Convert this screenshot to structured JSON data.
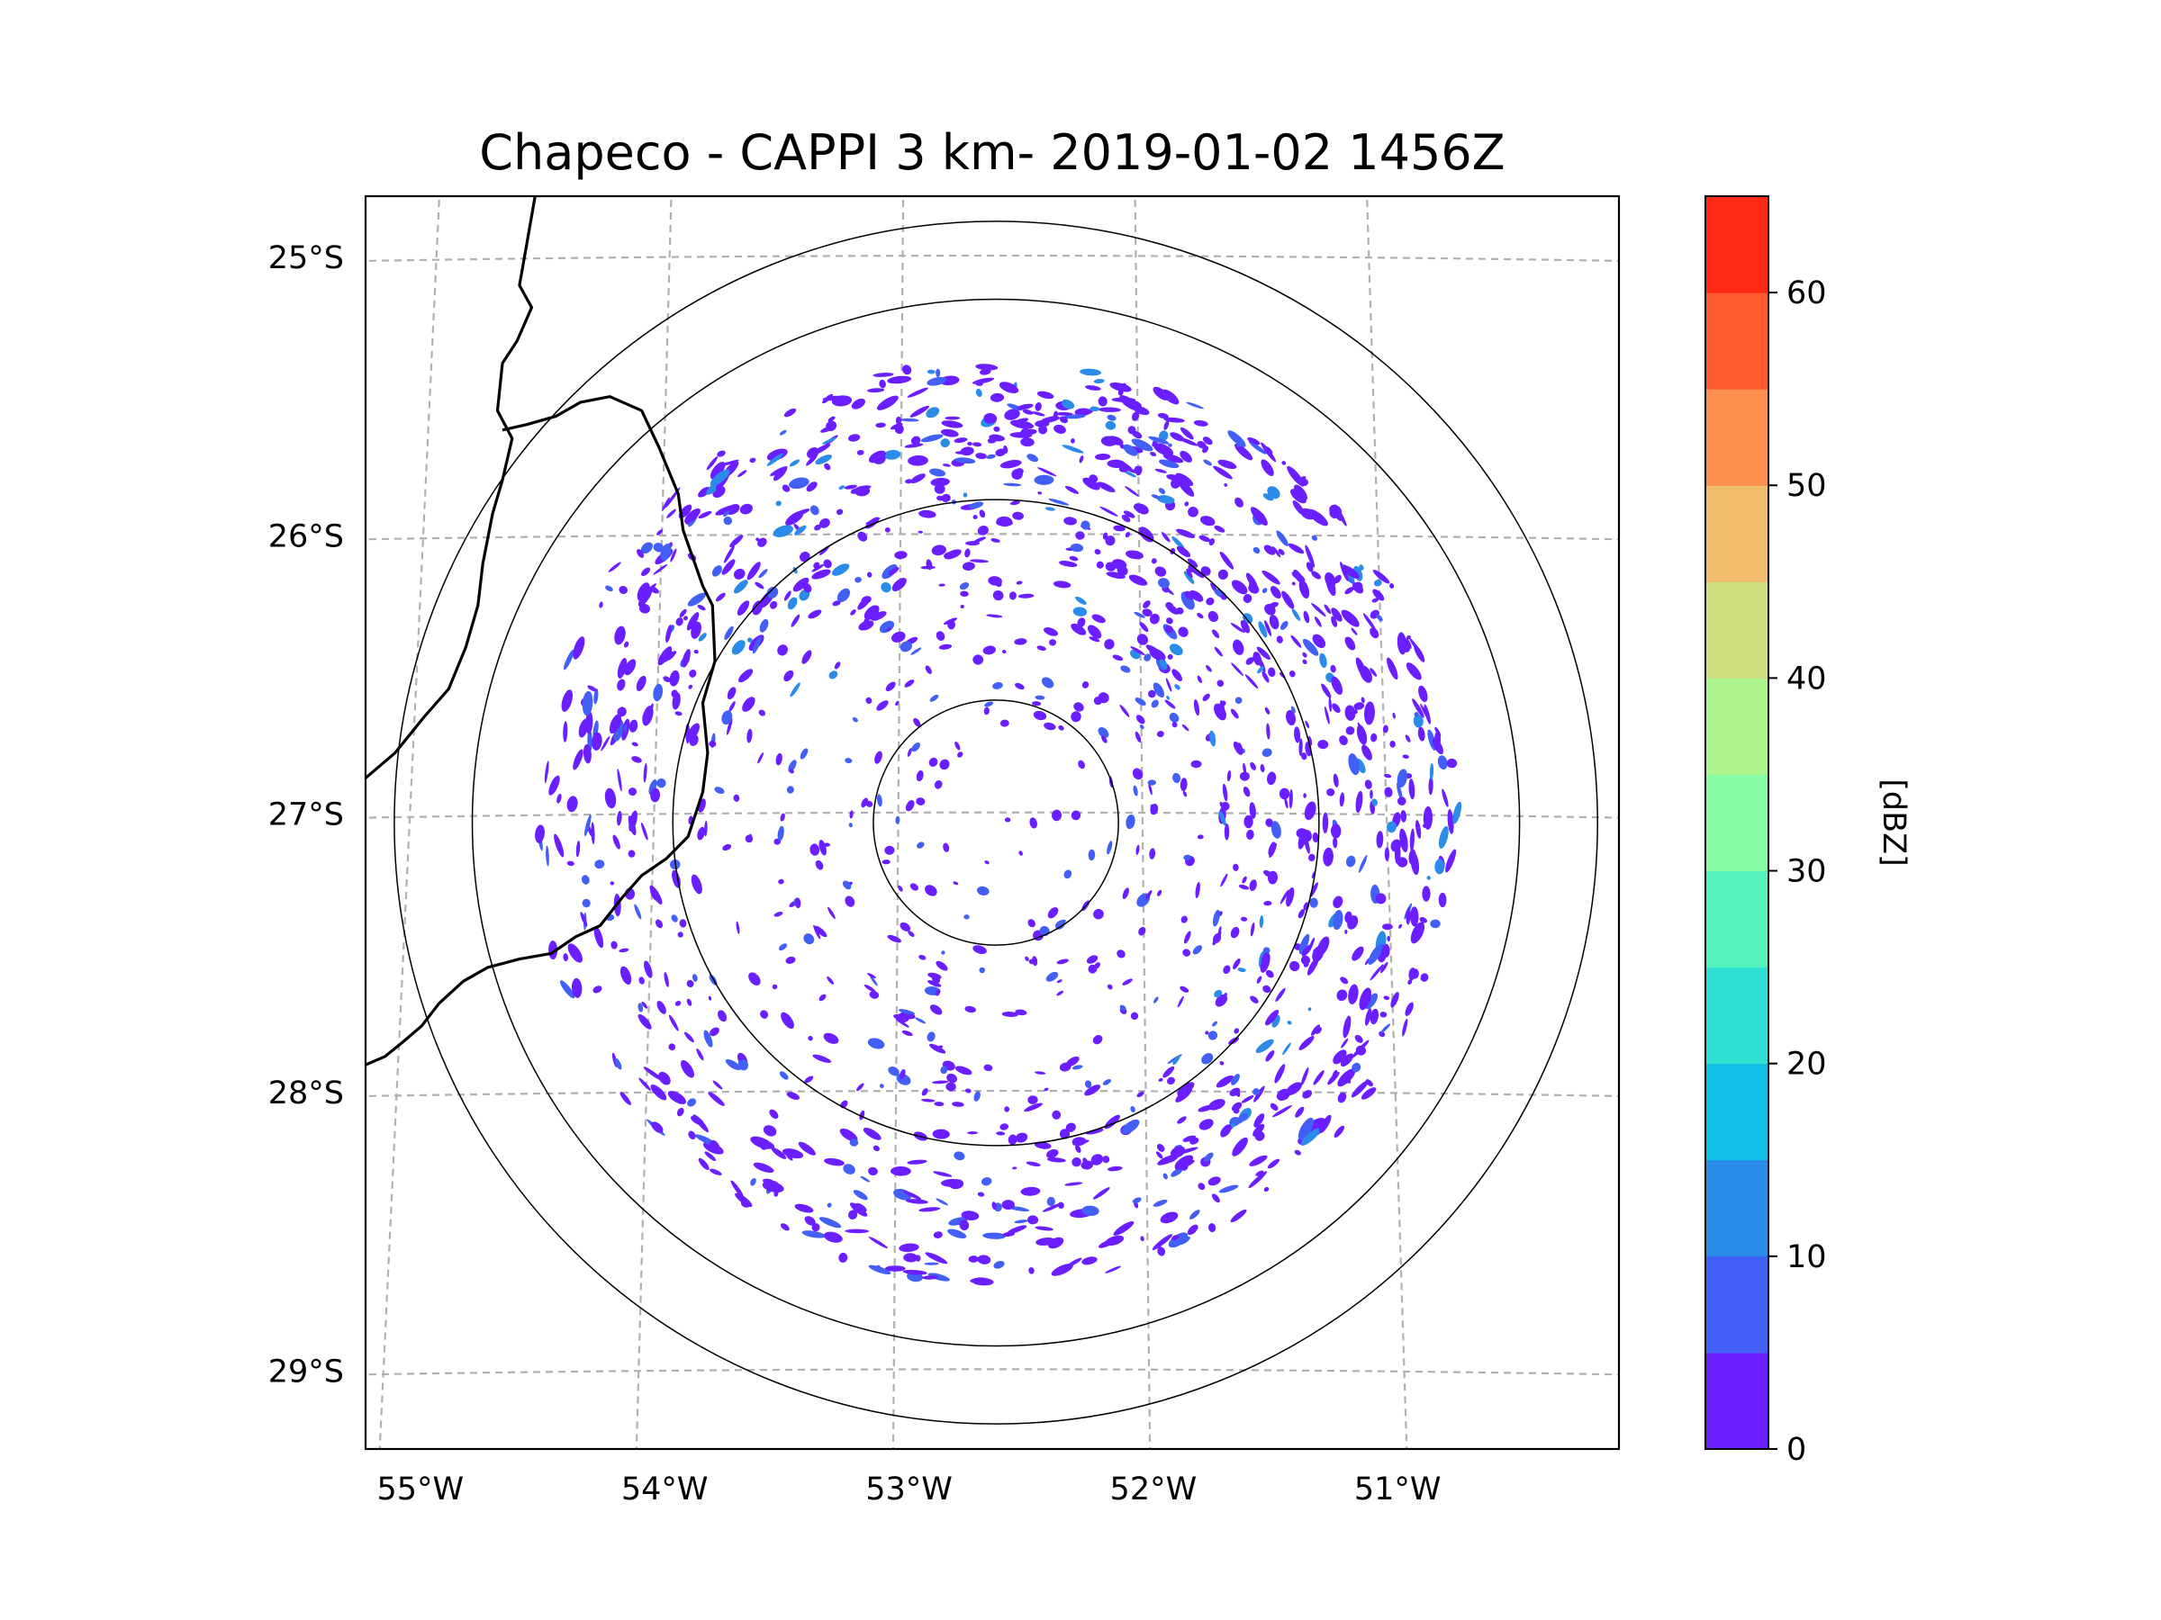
{
  "chart_data": {
    "type": "heatmap",
    "title": "Chapeco - CAPPI 3 km- 2019-01-02 1456Z",
    "x_ticks": [
      {
        "label": "55°W",
        "lon": -55
      },
      {
        "label": "54°W",
        "lon": -54
      },
      {
        "label": "53°W",
        "lon": -53
      },
      {
        "label": "52°W",
        "lon": -52
      },
      {
        "label": "51°W",
        "lon": -51
      }
    ],
    "y_ticks": [
      {
        "label": "25°S",
        "lat": -25
      },
      {
        "label": "26°S",
        "lat": -26
      },
      {
        "label": "27°S",
        "lat": -27
      },
      {
        "label": "28°S",
        "lat": -28
      },
      {
        "label": "29°S",
        "lat": -29
      }
    ],
    "xlim": [
      -55.18,
      -50.05
    ],
    "ylim": [
      -29.28,
      -24.78
    ],
    "radar_center": {
      "lon": -52.6,
      "lat": -27.03
    },
    "range_rings_deg_lat": [
      0.44,
      1.16,
      1.88,
      2.16
    ],
    "echo_extent_deg_lat": 1.66,
    "colorbar": {
      "label": "[dBZ]",
      "ticks": [
        "0",
        "10",
        "20",
        "30",
        "40",
        "50",
        "60"
      ],
      "min": 0,
      "max": 65,
      "step": 5,
      "colors": [
        "#6b1eff",
        "#4360f6",
        "#2a8ce8",
        "#0fbfe6",
        "#2ee0d3",
        "#56f2be",
        "#86fca6",
        "#aef58e",
        "#d0de7f",
        "#f1bc6c",
        "#fd8f4f",
        "#fd5a30",
        "#fe2a16"
      ]
    },
    "echo_colors": {
      "weak": "#6b1eff",
      "moderate": "#4360f6",
      "strong": "#2a8ce8"
    }
  }
}
